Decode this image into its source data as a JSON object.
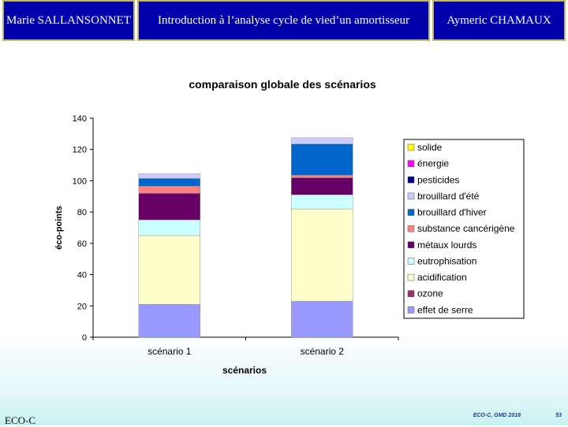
{
  "header": {
    "left": "Marie SALLANSONNET",
    "center": "Introduction à l’analyse cycle de vied’un amortisseur",
    "right": "Aymeric CHAMAUX"
  },
  "footer": {
    "left": "ECO-C",
    "right": "ECO-C, GMD 2018",
    "page": "53"
  },
  "chart_data": {
    "type": "bar",
    "stacked": true,
    "title": "comparaison globale des scénarios",
    "xlabel": "scénarios",
    "ylabel": "éco-points",
    "ylim": [
      0,
      140
    ],
    "yticks": [
      0,
      20,
      40,
      60,
      80,
      100,
      120,
      140
    ],
    "categories": [
      "scénario 1",
      "scénario 2"
    ],
    "series": [
      {
        "name": "effet de serre",
        "color": "#9999ff",
        "values": [
          21,
          23
        ]
      },
      {
        "name": "ozone",
        "color": "#993366",
        "values": [
          0,
          0
        ]
      },
      {
        "name": "acidification",
        "color": "#ffffcc",
        "values": [
          44,
          59
        ]
      },
      {
        "name": "eutrophisation",
        "color": "#ccffff",
        "values": [
          10,
          9
        ]
      },
      {
        "name": "métaux lourds",
        "color": "#660066",
        "values": [
          17,
          11
        ]
      },
      {
        "name": "substance cancérigène",
        "color": "#ff8080",
        "values": [
          4.5,
          1.5
        ]
      },
      {
        "name": "brouillard d'hiver",
        "color": "#0066cc",
        "values": [
          5,
          20
        ]
      },
      {
        "name": "brouillard d'été",
        "color": "#ccccff",
        "values": [
          3,
          4
        ]
      },
      {
        "name": "pesticides",
        "color": "#000080",
        "values": [
          0,
          0
        ]
      },
      {
        "name": "énergie",
        "color": "#ff00ff",
        "values": [
          0,
          0
        ]
      },
      {
        "name": "solide",
        "color": "#ffff00",
        "values": [
          0,
          0
        ]
      }
    ],
    "legend_order": [
      "solide",
      "énergie",
      "pesticides",
      "brouillard d'été",
      "brouillard d'hiver",
      "substance cancérigène",
      "métaux lourds",
      "eutrophisation",
      "acidification",
      "ozone",
      "effet de serre"
    ],
    "legend_position": "right"
  }
}
